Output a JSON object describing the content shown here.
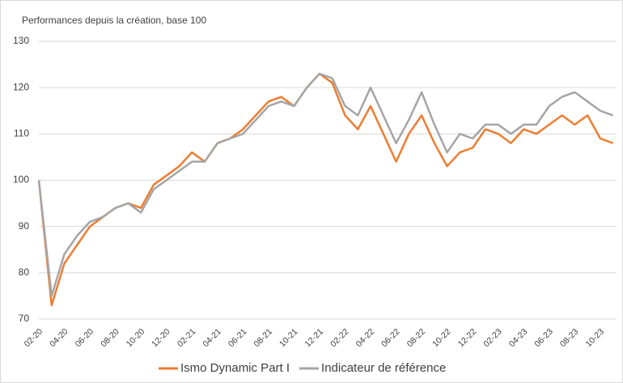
{
  "chart_data": {
    "type": "line",
    "title": "Performances depuis la création, base 100",
    "categories": [
      "02-20",
      null,
      "04-20",
      null,
      "06-20",
      null,
      "08-20",
      null,
      "10-20",
      null,
      "12-20",
      null,
      "02-21",
      null,
      "04-21",
      null,
      "06-21",
      null,
      "08-21",
      null,
      "10-21",
      null,
      "12-21",
      null,
      "02-22",
      null,
      "04-22",
      null,
      "06-22",
      null,
      "08-22",
      null,
      "10-22",
      null,
      "12-22",
      null,
      "02-23",
      null,
      "04-23",
      null,
      "06-23",
      null,
      "08-23",
      null,
      "10-23",
      null
    ],
    "series": [
      {
        "name": "Ismo Dynamic Part I",
        "color": "#ed7d31",
        "values": [
          100,
          73,
          82,
          86,
          90,
          92,
          94,
          95,
          94,
          99,
          101,
          103,
          106,
          104,
          108,
          109,
          111,
          114,
          117,
          118,
          116,
          120,
          123,
          121,
          114,
          111,
          116,
          110,
          104,
          110,
          114,
          108,
          103,
          106,
          107,
          111,
          110,
          108,
          111,
          110,
          112,
          114,
          112,
          114,
          109,
          108
        ]
      },
      {
        "name": "Indicateur de référence",
        "color": "#a5a5a5",
        "values": [
          100,
          75,
          84,
          88,
          91,
          92,
          94,
          95,
          93,
          98,
          100,
          102,
          104,
          104,
          108,
          109,
          110,
          113,
          116,
          117,
          116,
          120,
          123,
          122,
          116,
          114,
          120,
          114,
          108,
          113,
          119,
          112,
          106,
          110,
          109,
          112,
          112,
          110,
          112,
          112,
          116,
          118,
          119,
          117,
          115,
          114
        ]
      }
    ],
    "ylim": [
      70,
      130
    ],
    "yticks": [
      70,
      80,
      90,
      100,
      110,
      120,
      130
    ],
    "grid": true,
    "legend": "bottom"
  }
}
